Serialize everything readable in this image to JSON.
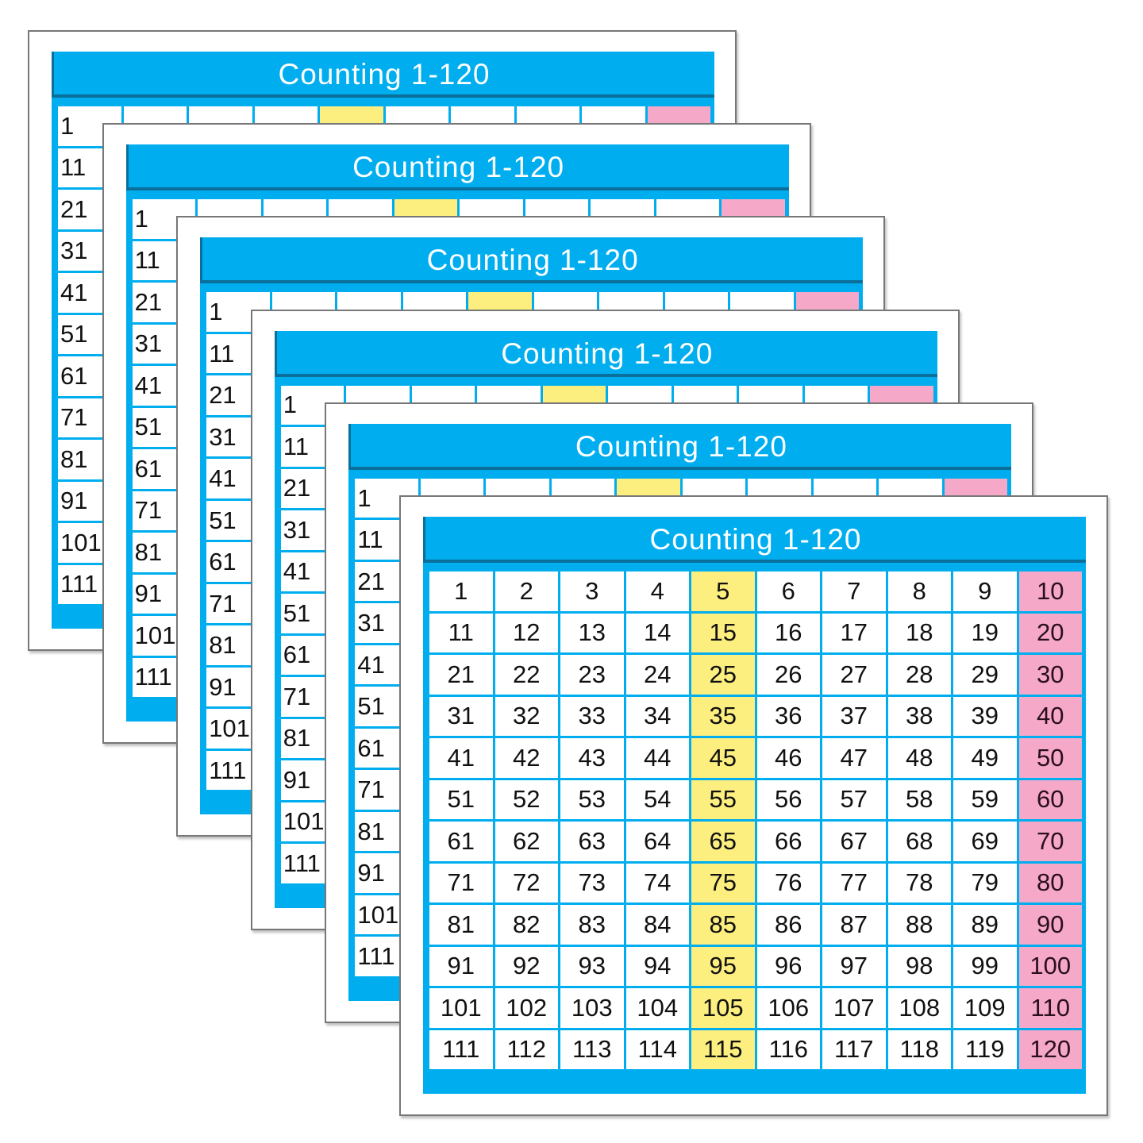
{
  "colors": {
    "panel": "#00aeef",
    "column5": "#fcee7f",
    "column10": "#f5a8c8"
  },
  "card_count": 6,
  "card": {
    "title": "Counting 1-120",
    "rows": [
      [
        "1",
        "2",
        "3",
        "4",
        "5",
        "6",
        "7",
        "8",
        "9",
        "10"
      ],
      [
        "11",
        "12",
        "13",
        "14",
        "15",
        "16",
        "17",
        "18",
        "19",
        "20"
      ],
      [
        "21",
        "22",
        "23",
        "24",
        "25",
        "26",
        "27",
        "28",
        "29",
        "30"
      ],
      [
        "31",
        "32",
        "33",
        "34",
        "35",
        "36",
        "37",
        "38",
        "39",
        "40"
      ],
      [
        "41",
        "42",
        "43",
        "44",
        "45",
        "46",
        "47",
        "48",
        "49",
        "50"
      ],
      [
        "51",
        "52",
        "53",
        "54",
        "55",
        "56",
        "57",
        "58",
        "59",
        "60"
      ],
      [
        "61",
        "62",
        "63",
        "64",
        "65",
        "66",
        "67",
        "68",
        "69",
        "70"
      ],
      [
        "71",
        "72",
        "73",
        "74",
        "75",
        "76",
        "77",
        "78",
        "79",
        "80"
      ],
      [
        "81",
        "82",
        "83",
        "84",
        "85",
        "86",
        "87",
        "88",
        "89",
        "90"
      ],
      [
        "91",
        "92",
        "93",
        "94",
        "95",
        "96",
        "97",
        "98",
        "99",
        "100"
      ],
      [
        "101",
        "102",
        "103",
        "104",
        "105",
        "106",
        "107",
        "108",
        "109",
        "110"
      ],
      [
        "111",
        "112",
        "113",
        "114",
        "115",
        "116",
        "117",
        "118",
        "119",
        "120"
      ]
    ]
  }
}
